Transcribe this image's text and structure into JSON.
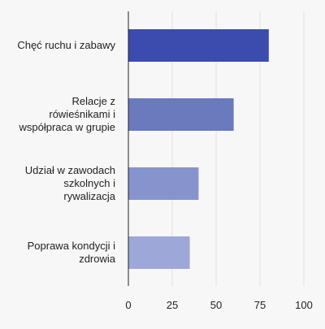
{
  "chart_data": {
    "type": "bar",
    "orientation": "horizontal",
    "categories": [
      "Chęć ruchu i zabawy",
      "Relacje z\nrówieśnikami i\nwspółpraca w grupie",
      "Udział w zawodach\nszkolnych i\nrywalizacja",
      "Poprawa kondycji i\nzdrowia"
    ],
    "values": [
      80,
      60,
      40,
      35
    ],
    "bar_colors": [
      "#3b4cae",
      "#6b79bd",
      "#8793cc",
      "#9ea8d8"
    ],
    "title": "",
    "xlabel": "",
    "ylabel": "",
    "xlim": [
      0,
      100
    ],
    "xticks": [
      0,
      25,
      50,
      75,
      100
    ],
    "grid": "vertical",
    "legend": "none"
  },
  "colors": {
    "background": "#f7f7f7",
    "grid": "#e2e2e2",
    "axis": "#222222",
    "text": "#222222"
  }
}
